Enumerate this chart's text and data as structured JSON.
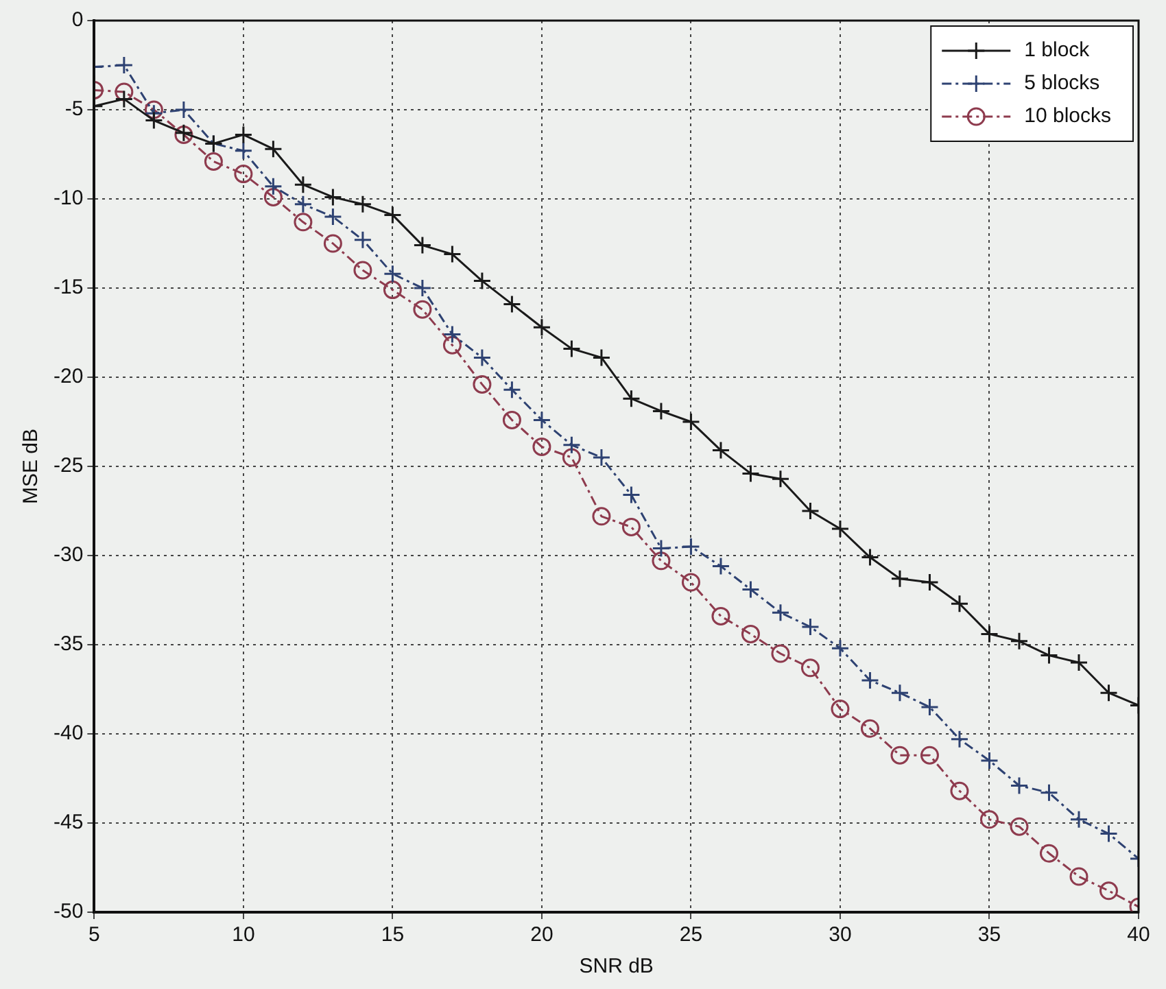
{
  "chart_data": {
    "type": "line",
    "xlabel": "SNR dB",
    "ylabel": "MSE dB",
    "x": [
      5,
      6,
      7,
      8,
      9,
      10,
      11,
      12,
      13,
      14,
      15,
      16,
      17,
      18,
      19,
      20,
      21,
      22,
      23,
      24,
      25,
      26,
      27,
      28,
      29,
      30,
      31,
      32,
      33,
      34,
      35,
      36,
      37,
      38,
      39,
      40
    ],
    "series": [
      {
        "name": "1 block",
        "color": "#1a1a1a",
        "marker": "cross",
        "line_style": "solid",
        "values": [
          -4.8,
          -4.4,
          -5.6,
          -6.3,
          -6.9,
          -6.4,
          -7.2,
          -9.2,
          -9.9,
          -10.3,
          -10.9,
          -12.6,
          -13.1,
          -14.6,
          -15.9,
          -17.2,
          -18.4,
          -18.9,
          -21.2,
          -21.9,
          -22.5,
          -24.1,
          -25.4,
          -25.7,
          -27.5,
          -28.5,
          -30.1,
          -31.3,
          -31.5,
          -32.7,
          -34.4,
          -34.8,
          -35.6,
          -36.0,
          -37.7,
          -38.4
        ]
      },
      {
        "name": "5 blocks",
        "color": "#2e4272",
        "marker": "cross",
        "line_style": "dashed",
        "values": [
          -2.6,
          -2.5,
          -5.2,
          -5.0,
          -6.9,
          -7.3,
          -9.3,
          -10.3,
          -11.0,
          -12.3,
          -14.2,
          -15.0,
          -17.6,
          -18.9,
          -20.7,
          -22.4,
          -23.8,
          -24.5,
          -26.6,
          -29.6,
          -29.5,
          -30.6,
          -31.9,
          -33.2,
          -34.0,
          -35.2,
          -37.0,
          -37.7,
          -38.5,
          -40.3,
          -41.5,
          -42.9,
          -43.3,
          -44.8,
          -45.6,
          -47.0
        ]
      },
      {
        "name": "10 blocks",
        "color": "#8e3b4e",
        "marker": "circle",
        "line_style": "dashed",
        "values": [
          -3.9,
          -4.0,
          -5.0,
          -6.4,
          -7.9,
          -8.6,
          -9.9,
          -11.3,
          -12.5,
          -14.0,
          -15.1,
          -16.2,
          -18.2,
          -20.4,
          -22.4,
          -23.9,
          -24.5,
          -27.8,
          -28.4,
          -30.3,
          -31.5,
          -33.4,
          -34.4,
          -35.5,
          -36.3,
          -38.6,
          -39.7,
          -41.2,
          -41.2,
          -43.2,
          -44.8,
          -45.2,
          -46.7,
          -48.0,
          -48.8,
          -49.7
        ]
      }
    ],
    "xlim": [
      5,
      40
    ],
    "xticks": [
      5,
      10,
      15,
      20,
      25,
      30,
      35,
      40
    ],
    "ylim": [
      -50,
      0
    ],
    "yticks": [
      -50,
      -45,
      -40,
      -35,
      -30,
      -25,
      -20,
      -15,
      -10,
      -5,
      0
    ],
    "grid": true,
    "legend": "top right"
  }
}
